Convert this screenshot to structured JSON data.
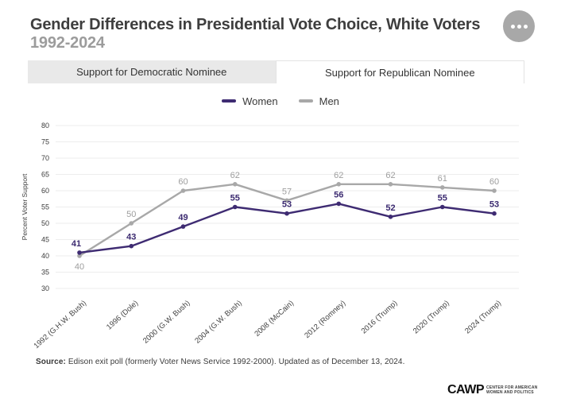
{
  "header": {
    "title": "Gender Differences in Presidential Vote Choice, White Voters",
    "subtitle": "1992-2024"
  },
  "more_button": {
    "icon": "ellipsis-icon"
  },
  "tabs": [
    {
      "label": "Support for Democratic Nominee",
      "active": false
    },
    {
      "label": "Support for Republican Nominee",
      "active": true
    }
  ],
  "legend": [
    {
      "label": "Women",
      "color": "#3e2b72"
    },
    {
      "label": "Men",
      "color": "#a8a8a8"
    }
  ],
  "chart_data": {
    "type": "line",
    "title": "Gender Differences in Presidential Vote Choice, White Voters 1992-2024",
    "active_view": "Support for Republican Nominee",
    "categories": [
      "1992 (G.H.W. Bush)",
      "1996 (Dole)",
      "2000 (G.W. Bush)",
      "2004 (G.W. Bush)",
      "2008 (McCain)",
      "2012 (Romney)",
      "2016 (Trump)",
      "2020 (Trump)",
      "2024 (Trump)"
    ],
    "series": [
      {
        "name": "Women",
        "color": "#3e2b72",
        "label_color": "#3b2a70",
        "values": [
          41,
          43,
          49,
          55,
          53,
          56,
          52,
          55,
          53
        ]
      },
      {
        "name": "Men",
        "color": "#a8a8a8",
        "label_color": "#9e9e9e",
        "values": [
          40,
          50,
          60,
          62,
          57,
          62,
          62,
          61,
          60
        ]
      }
    ],
    "xlabel": "",
    "ylabel": "Percent Voter Support",
    "ylim": [
      30,
      80
    ],
    "ytick_step": 5,
    "grid": true,
    "legend_position": "top"
  },
  "source": {
    "label": "Source:",
    "text": " Edison exit poll (formerly Voter News Service 1992-2000). Updated as of December 13, 2024."
  },
  "footer_logo": {
    "name": "CAWP",
    "tagline_line1": "CENTER FOR AMERICAN",
    "tagline_line2": "WOMEN AND POLITICS"
  }
}
